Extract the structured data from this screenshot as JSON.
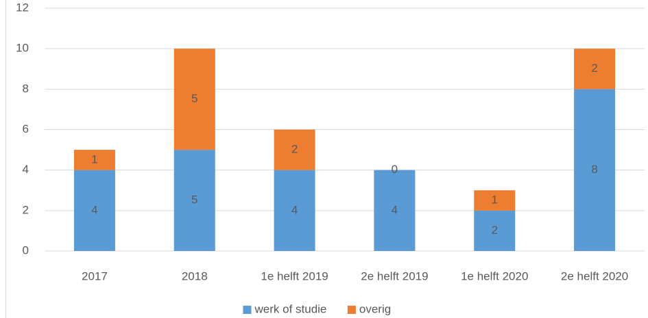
{
  "chart_data": {
    "type": "bar",
    "stacked": true,
    "categories": [
      "2017",
      "2018",
      "1e helft 2019",
      "2e helft 2019",
      "1e helft 2020",
      "2e helft 2020"
    ],
    "series": [
      {
        "name": "werk of studie",
        "color": "#5b9bd5",
        "values": [
          4,
          5,
          4,
          4,
          2,
          8
        ]
      },
      {
        "name": "overig",
        "color": "#ed7d31",
        "values": [
          1,
          5,
          2,
          0,
          1,
          2
        ]
      }
    ],
    "ylim": [
      0,
      12
    ],
    "yticks": [
      0,
      2,
      4,
      6,
      8,
      10,
      12
    ],
    "grid": true,
    "legend": "bottom"
  }
}
